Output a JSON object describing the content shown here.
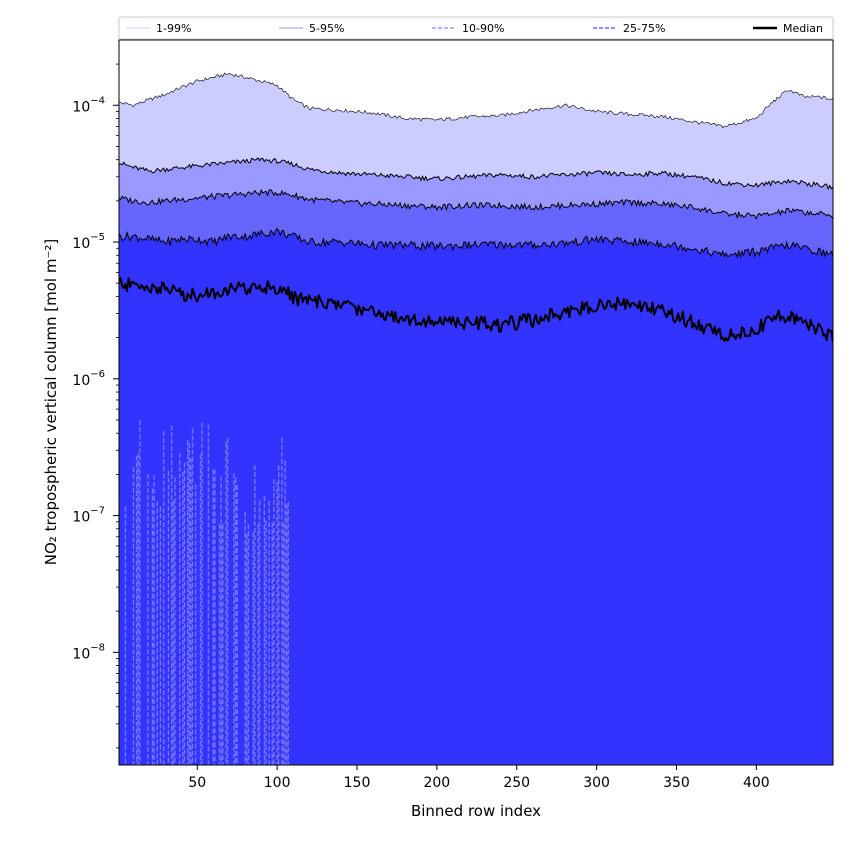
{
  "chart_data": {
    "type": "area",
    "xlabel": "Binned row index",
    "ylabel": "NO₂ tropospheric vertical column [mol m⁻²]",
    "y_scale": "log",
    "xlim": [
      1,
      448
    ],
    "ylim": [
      1.5e-09,
      0.0003
    ],
    "x_ticks": [
      50,
      100,
      150,
      200,
      250,
      300,
      350,
      400
    ],
    "y_ticks": [
      {
        "value": 1e-08,
        "mantissa": "10",
        "exponent": "−8"
      },
      {
        "value": 1e-07,
        "mantissa": "10",
        "exponent": "−7"
      },
      {
        "value": 1e-06,
        "mantissa": "10",
        "exponent": "−6"
      },
      {
        "value": 1e-05,
        "mantissa": "10",
        "exponent": "−5"
      },
      {
        "value": 0.0001,
        "mantissa": "10",
        "exponent": "−4"
      }
    ],
    "grid": false,
    "legend_position": "top",
    "x": [
      1,
      10,
      20,
      30,
      40,
      50,
      60,
      70,
      80,
      90,
      100,
      110,
      120,
      140,
      160,
      180,
      200,
      220,
      240,
      260,
      280,
      300,
      320,
      340,
      360,
      380,
      400,
      410,
      420,
      430,
      440,
      448
    ],
    "series": [
      {
        "name": "1-99%",
        "kind": "band",
        "upper": [
          0.000105,
          0.0001,
          0.00011,
          0.00012,
          0.000135,
          0.00015,
          0.00016,
          0.00017,
          0.00016,
          0.00015,
          0.00014,
          0.00011,
          9.5e-05,
          9.2e-05,
          8.8e-05,
          8e-05,
          7.8e-05,
          8.2e-05,
          8.4e-05,
          9.2e-05,
          0.0001,
          9e-05,
          8.6e-05,
          8.3e-05,
          7.6e-05,
          7e-05,
          8e-05,
          0.000105,
          0.00013,
          0.000115,
          0.000115,
          0.00011
        ],
        "lower": [
          5e-07,
          3e-07,
          2.5e-07,
          1e-09,
          1e-09,
          1e-09,
          1e-09,
          1e-09,
          1e-09,
          1e-09,
          1e-09,
          1e-09,
          1e-09,
          1e-09,
          1e-09,
          1e-09,
          1e-09,
          1e-09,
          1e-09,
          1e-09,
          1e-09,
          1e-09,
          1e-09,
          1e-09,
          1e-09,
          1e-09,
          1e-09,
          1e-09,
          1e-09,
          1e-09,
          1e-09,
          1e-09
        ],
        "color": "#ccccff"
      },
      {
        "name": "5-95%",
        "kind": "band",
        "upper": [
          3.8e-05,
          3.5e-05,
          3.3e-05,
          3.4e-05,
          3.5e-05,
          3.6e-05,
          3.7e-05,
          3.8e-05,
          3.9e-05,
          4e-05,
          3.9e-05,
          3.7e-05,
          3.4e-05,
          3.2e-05,
          3.1e-05,
          3e-05,
          2.9e-05,
          3e-05,
          3.1e-05,
          3e-05,
          3.1e-05,
          3.2e-05,
          3.1e-05,
          3.2e-05,
          3e-05,
          2.7e-05,
          2.6e-05,
          2.7e-05,
          2.8e-05,
          2.7e-05,
          2.6e-05,
          2.5e-05
        ],
        "lower": [
          1e-09,
          1e-09,
          1e-09,
          1e-09,
          1e-09,
          1e-09,
          1e-09,
          1e-09,
          1e-09,
          1e-09,
          1e-09,
          1e-09,
          1e-09,
          1e-09,
          1e-09,
          1e-09,
          1e-09,
          1e-09,
          1e-09,
          1e-09,
          1e-09,
          1e-09,
          1e-09,
          1e-09,
          1e-09,
          1e-09,
          1e-09,
          1e-09,
          1e-09,
          1e-09,
          1e-09,
          1e-09
        ],
        "color": "#9999ff"
      },
      {
        "name": "10-90%",
        "kind": "band",
        "upper": [
          2.1e-05,
          2e-05,
          1.95e-05,
          2e-05,
          2.05e-05,
          2.1e-05,
          2.15e-05,
          2.2e-05,
          2.25e-05,
          2.3e-05,
          2.3e-05,
          2.2e-05,
          2.05e-05,
          1.95e-05,
          1.9e-05,
          1.85e-05,
          1.8e-05,
          1.85e-05,
          1.85e-05,
          1.8e-05,
          1.85e-05,
          1.9e-05,
          1.95e-05,
          1.9e-05,
          1.8e-05,
          1.6e-05,
          1.55e-05,
          1.6e-05,
          1.7e-05,
          1.65e-05,
          1.6e-05,
          1.55e-05
        ],
        "lower": [
          1e-09,
          1e-09,
          1e-09,
          1e-09,
          1e-09,
          1e-09,
          1e-09,
          1e-09,
          1e-09,
          1e-09,
          1e-09,
          1e-09,
          1e-09,
          1e-09,
          1e-09,
          1e-09,
          1e-09,
          1e-09,
          1e-09,
          1e-09,
          1e-09,
          1e-09,
          1e-09,
          1e-09,
          1e-09,
          1e-09,
          1e-09,
          1e-09,
          1e-09,
          1e-09,
          1e-09,
          1e-09
        ],
        "color": "#6666ff"
      },
      {
        "name": "25-75%",
        "kind": "band",
        "upper": [
          1.1e-05,
          1.1e-05,
          1.05e-05,
          1e-05,
          1.05e-05,
          1.05e-05,
          1e-05,
          1.1e-05,
          1.1e-05,
          1.15e-05,
          1.2e-05,
          1.1e-05,
          1e-05,
          1e-05,
          9.5e-06,
          9.5e-06,
          9.3e-06,
          9.5e-06,
          9.6e-06,
          9.5e-06,
          9.8e-06,
          1.05e-05,
          1e-05,
          9.8e-06,
          9e-06,
          8e-06,
          8.5e-06,
          9e-06,
          9.5e-06,
          9e-06,
          8.5e-06,
          8e-06
        ],
        "lower": [
          1e-09,
          1e-09,
          1e-09,
          1e-09,
          1e-09,
          1e-09,
          1e-09,
          1e-09,
          1e-09,
          1e-09,
          1e-09,
          1e-09,
          1e-09,
          1e-09,
          1e-09,
          1e-09,
          1e-09,
          1e-09,
          1e-09,
          1e-09,
          1e-09,
          1e-09,
          1e-09,
          1e-09,
          1e-09,
          1e-09,
          1e-09,
          1e-09,
          1e-09,
          1e-09,
          1e-09,
          1e-09
        ],
        "color": "#3333ff"
      },
      {
        "name": "Median",
        "kind": "line",
        "values": [
          5e-06,
          4.8e-06,
          4.7e-06,
          4.6e-06,
          4.2e-06,
          4.1e-06,
          4.3e-06,
          4.5e-06,
          4.6e-06,
          4.7e-06,
          4.7e-06,
          4e-06,
          3.7e-06,
          3.5e-06,
          3.1e-06,
          2.8e-06,
          2.6e-06,
          2.6e-06,
          2.5e-06,
          2.7e-06,
          3.1e-06,
          3.5e-06,
          3.6e-06,
          3.2e-06,
          2.6e-06,
          2.1e-06,
          2.3e-06,
          2.8e-06,
          2.9e-06,
          2.6e-06,
          2.3e-06,
          2e-06
        ],
        "color": "#000000"
      }
    ],
    "legend": [
      {
        "name": "1-99%",
        "color": "#ccccff",
        "style": "solid"
      },
      {
        "name": "5-95%",
        "color": "#9999ff",
        "style": "solid"
      },
      {
        "name": "10-90%",
        "color": "#9999ff",
        "style": "dashed"
      },
      {
        "name": "25-75%",
        "color": "#6666ff",
        "style": "dashed"
      },
      {
        "name": "Median",
        "color": "#000000",
        "style": "solid-thick"
      }
    ]
  }
}
